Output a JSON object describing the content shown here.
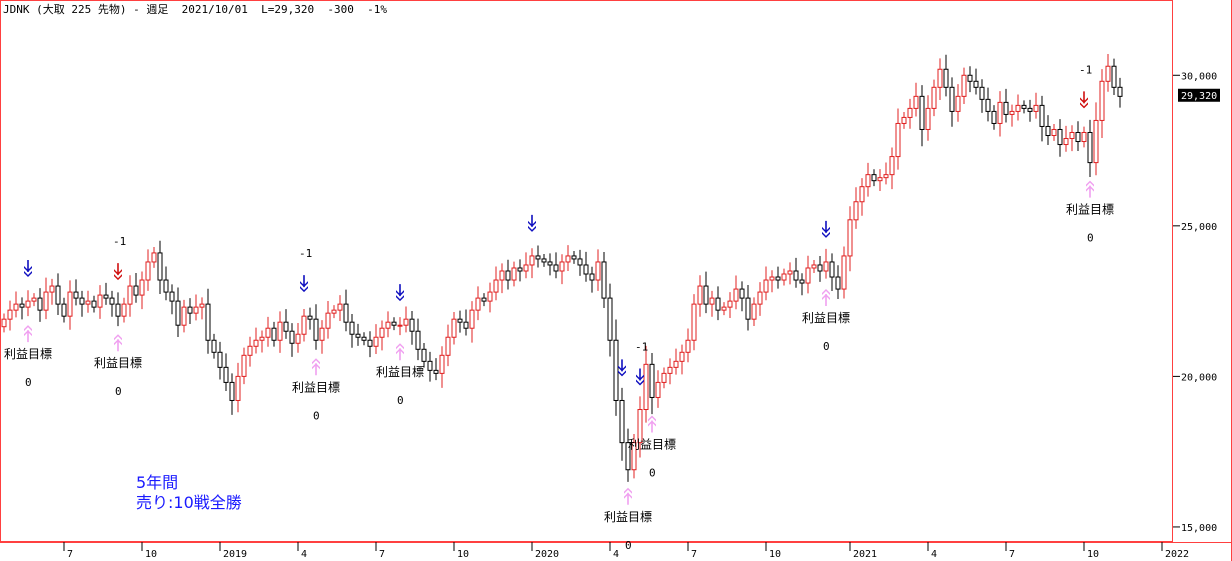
{
  "header": {
    "symbol": "JDNK",
    "name": "(大取 225 先物)",
    "period": "- 週足",
    "date": "2021/10/01",
    "last": "L=29,320",
    "change": "-300",
    "pct": "-1%"
  },
  "annotation": {
    "line1": "5年間",
    "line2": "売り:10戦全勝"
  },
  "colors": {
    "up": "#e02020",
    "down": "#000000",
    "sell_arrow_red": "#d01010",
    "sell_arrow_blue": "#1010c0",
    "target_arrow": "#f0a0f0",
    "frame": "#ff4040",
    "price_tag_bg": "#000000",
    "annotation": "#1a1aff"
  },
  "chart_data": {
    "type": "candlestick",
    "title": "JDNK (大取 225 先物) - 週足",
    "ylim": [
      14500,
      32500
    ],
    "y_ticks": [
      {
        "value": 15000,
        "label": "15,000"
      },
      {
        "value": 20000,
        "label": "20,000"
      },
      {
        "value": 25000,
        "label": "25,000"
      },
      {
        "value": 30000,
        "label": "30,000"
      }
    ],
    "x_ticks": [
      {
        "week": 10,
        "label": "7"
      },
      {
        "week": 23,
        "label": "10"
      },
      {
        "week": 36,
        "label": "2019"
      },
      {
        "week": 49,
        "label": "4"
      },
      {
        "week": 62,
        "label": "7"
      },
      {
        "week": 75,
        "label": "10"
      },
      {
        "week": 88,
        "label": "2020"
      },
      {
        "week": 101,
        "label": "4"
      },
      {
        "week": 114,
        "label": "7"
      },
      {
        "week": 127,
        "label": "10"
      },
      {
        "week": 141,
        "label": "2021"
      },
      {
        "week": 154,
        "label": "4"
      },
      {
        "week": 167,
        "label": "7"
      },
      {
        "week": 180,
        "label": "10"
      },
      {
        "week": 193,
        "label": "2022"
      }
    ],
    "last_price": {
      "value": 29320,
      "label": "29,320"
    },
    "weekly_close": [
      21900,
      22200,
      22400,
      22300,
      22500,
      22600,
      22200,
      22800,
      23000,
      22400,
      22000,
      22800,
      22600,
      22400,
      22500,
      22300,
      22700,
      22600,
      22400,
      22000,
      22400,
      23000,
      22700,
      23200,
      23800,
      24100,
      23200,
      22800,
      22500,
      21700,
      22300,
      22100,
      22300,
      22400,
      21200,
      20800,
      20300,
      19800,
      19200,
      20000,
      20700,
      21000,
      21200,
      21300,
      21600,
      21200,
      21800,
      21500,
      21100,
      21400,
      22000,
      21900,
      21200,
      21600,
      22100,
      22200,
      22400,
      21800,
      21400,
      21300,
      21200,
      21000,
      21300,
      21600,
      21800,
      21700,
      21700,
      21900,
      21500,
      20900,
      20500,
      20200,
      20100,
      20700,
      21300,
      21900,
      21800,
      21600,
      22200,
      22600,
      22500,
      22800,
      23200,
      23500,
      23200,
      23600,
      23500,
      23700,
      24000,
      23900,
      23800,
      23700,
      23500,
      23800,
      24000,
      23900,
      23700,
      23400,
      23200,
      23800,
      22600,
      21200,
      19200,
      17800,
      16900,
      17800,
      18900,
      20400,
      19300,
      19800,
      20100,
      20300,
      20500,
      20800,
      21200,
      22400,
      23000,
      22400,
      22600,
      22200,
      22300,
      22500,
      22900,
      22600,
      21900,
      22400,
      22800,
      23200,
      23300,
      23200,
      23400,
      23500,
      23200,
      23100,
      23600,
      23700,
      23500,
      23800,
      23300,
      22900,
      24000,
      25200,
      25800,
      26300,
      26700,
      26500,
      26600,
      26700,
      27300,
      28400,
      28600,
      28900,
      29300,
      28200,
      28900,
      29600,
      30200,
      29600,
      28800,
      29300,
      30000,
      29800,
      29600,
      29200,
      28800,
      28400,
      29100,
      28700,
      28800,
      29000,
      28900,
      28800,
      29000,
      28300,
      28000,
      28200,
      27700,
      27900,
      28100,
      27800,
      28100,
      27100,
      28500,
      29800,
      30300,
      29600,
      29300
    ],
    "sell_signals": [
      {
        "week": 4,
        "color": "blue",
        "label": ""
      },
      {
        "week": 19,
        "color": "red",
        "label": "-1"
      },
      {
        "week": 50,
        "color": "blue",
        "label": "-1"
      },
      {
        "week": 66,
        "color": "blue",
        "label": ""
      },
      {
        "week": 88,
        "color": "blue",
        "label": ""
      },
      {
        "week": 103,
        "color": "blue",
        "label": ""
      },
      {
        "week": 106,
        "color": "blue",
        "label": "-1"
      },
      {
        "week": 137,
        "color": "blue",
        "label": ""
      },
      {
        "week": 180,
        "color": "red",
        "label": "-1"
      }
    ],
    "targets": [
      {
        "week": 4,
        "label": "利益目標",
        "value_label": "0"
      },
      {
        "week": 19,
        "label": "利益目標",
        "value_label": "0"
      },
      {
        "week": 52,
        "label": "利益目標",
        "value_label": "0"
      },
      {
        "week": 66,
        "label": "利益目標",
        "value_label": "0"
      },
      {
        "week": 104,
        "label": "利益目標",
        "value_label": "0"
      },
      {
        "week": 108,
        "label": "利益目標",
        "value_label": "0"
      },
      {
        "week": 137,
        "label": "利益目標",
        "value_label": "0"
      },
      {
        "week": 181,
        "label": "利益目標",
        "value_label": "0"
      }
    ]
  }
}
